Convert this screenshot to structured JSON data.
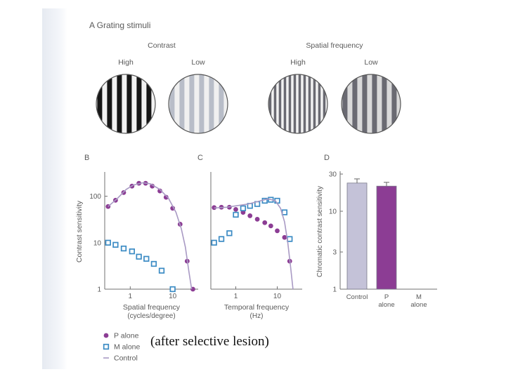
{
  "panel_a": {
    "title": "A  Grating stimuli",
    "group_contrast": "Contrast",
    "group_spatial": "Spatial frequency",
    "gratings": [
      {
        "label": "High",
        "group": "contrast",
        "stripes": 6,
        "dark": "#161616",
        "light": "#f2f2f2"
      },
      {
        "label": "Low",
        "group": "contrast",
        "stripes": 6,
        "dark": "#b8bdc8",
        "light": "#f0f0f0"
      },
      {
        "label": "High",
        "group": "spatial",
        "stripes": 12,
        "dark": "#6a6a72",
        "light": "#f2f2f2"
      },
      {
        "label": "Low",
        "group": "spatial",
        "stripes": 6,
        "dark": "#6a6a72",
        "light": "#dadada"
      }
    ]
  },
  "colors": {
    "p_alone": "#8c3d94",
    "m_alone": "#3b8bc4",
    "control": "#a99ac4",
    "axis": "#707070",
    "bar_control": "#c4c2d8",
    "bar_p": "#8c3d94"
  },
  "chart_data": [
    {
      "panel": "B",
      "type": "scatter",
      "xscale": "log",
      "yscale": "log",
      "xlim": [
        0.25,
        40
      ],
      "ylim": [
        1,
        300
      ],
      "xticks": [
        {
          "v": 1,
          "label": "1"
        },
        {
          "v": 10,
          "label": "10"
        }
      ],
      "yticks": [
        {
          "v": 1,
          "label": "1"
        },
        {
          "v": 10,
          "label": "10"
        },
        {
          "v": 100,
          "label": "100"
        }
      ],
      "xlabel": "Spatial frequency",
      "xlabel2": "(cycles/degree)",
      "ylabel": "Contrast sensitivity",
      "series": [
        {
          "name": "P alone",
          "marker": "dot",
          "x": [
            0.3,
            0.45,
            0.7,
            1.1,
            1.6,
            2.3,
            3.3,
            5,
            7,
            10,
            15,
            22,
            30
          ],
          "y": [
            60,
            82,
            120,
            165,
            190,
            190,
            165,
            130,
            95,
            55,
            25,
            4,
            1
          ]
        },
        {
          "name": "M alone",
          "marker": "square",
          "x": [
            0.3,
            0.45,
            0.7,
            1.1,
            1.6,
            2.4,
            3.6,
            5.5,
            10
          ],
          "y": [
            10,
            9,
            7.5,
            6.5,
            5,
            4.5,
            3.5,
            2.5,
            1
          ]
        },
        {
          "name": "Control",
          "marker": "line",
          "x": [
            0.3,
            0.5,
            0.8,
            1.2,
            2,
            3,
            5,
            8,
            12,
            16,
            20,
            24,
            28
          ],
          "y": [
            60,
            90,
            140,
            175,
            195,
            185,
            140,
            90,
            45,
            20,
            8,
            2.5,
            1
          ]
        }
      ]
    },
    {
      "panel": "C",
      "type": "scatter",
      "xscale": "log",
      "yscale": "log",
      "xlim": [
        0.25,
        40
      ],
      "ylim": [
        1,
        300
      ],
      "xticks": [
        {
          "v": 1,
          "label": "1"
        },
        {
          "v": 10,
          "label": "10"
        }
      ],
      "yticks": [],
      "xlabel": "Temporal frequency",
      "xlabel2": "(Hz)",
      "ylabel": "",
      "series": [
        {
          "name": "P alone",
          "marker": "dot",
          "x": [
            0.3,
            0.45,
            0.7,
            1,
            1.5,
            2.2,
            3.3,
            5,
            7,
            10,
            15,
            20
          ],
          "y": [
            57,
            58,
            58,
            52,
            45,
            38,
            32,
            27,
            23,
            18,
            13,
            4
          ]
        },
        {
          "name": "M alone",
          "marker": "square",
          "x": [
            0.3,
            0.45,
            0.7,
            1,
            1.5,
            2.2,
            3.3,
            5,
            7,
            10,
            15,
            20
          ],
          "y": [
            10,
            12,
            16,
            40,
            55,
            62,
            68,
            80,
            84,
            80,
            45,
            12
          ]
        },
        {
          "name": "Control",
          "marker": "line",
          "x": [
            0.3,
            0.6,
            1,
            2,
            4,
            6,
            9,
            12,
            15,
            18,
            21,
            24
          ],
          "y": [
            56,
            58,
            62,
            68,
            80,
            88,
            80,
            55,
            28,
            10,
            3,
            1
          ]
        }
      ]
    },
    {
      "panel": "D",
      "type": "bar",
      "yscale": "log",
      "ylim": [
        1,
        30
      ],
      "yticks": [
        {
          "v": 1,
          "label": "1"
        },
        {
          "v": 3,
          "label": "3"
        },
        {
          "v": 10,
          "label": "10"
        },
        {
          "v": 30,
          "label": "30"
        }
      ],
      "ylabel": "Chromatic contrast sensitivity",
      "categories": [
        "Control",
        "P alone",
        "M alone"
      ],
      "category_lines": [
        [
          "Control"
        ],
        [
          "P",
          "alone"
        ],
        [
          "M",
          "alone"
        ]
      ],
      "values": [
        23,
        21,
        1
      ],
      "errors": [
        3,
        2.5,
        0
      ]
    }
  ],
  "legend": [
    {
      "marker": "dot",
      "label": "P alone"
    },
    {
      "marker": "square",
      "label": "M alone"
    },
    {
      "marker": "line",
      "label": "Control"
    }
  ],
  "caption": "(after selective lesion)"
}
